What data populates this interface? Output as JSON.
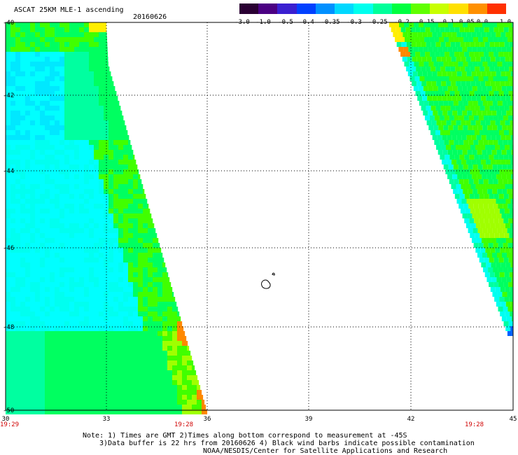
{
  "header": {
    "title": "ASCAT 25KM MLE-1 ascending",
    "date": "20160626"
  },
  "colorbar": {
    "labels": [
      "-3.0",
      "-1.0",
      "-0.5",
      "-0.4",
      "-0.35",
      "-0.3",
      "-0.25",
      "-0.2",
      "-0.15",
      "-0.1",
      "-0.05",
      "0.0",
      "1.0"
    ],
    "colors": [
      "#2a0033",
      "#4b0082",
      "#3a1fd0",
      "#0040ff",
      "#0090ff",
      "#00d8ff",
      "#00ffee",
      "#00ff9a",
      "#00ff40",
      "#60ff00",
      "#c8ff00",
      "#ffe000",
      "#ff9000",
      "#ff3000"
    ]
  },
  "map": {
    "lat_labels": [
      "-40",
      "-42",
      "-44",
      "-46",
      "-48",
      "-50"
    ],
    "lon_labels": [
      "30",
      "33",
      "36",
      "39",
      "42",
      "45"
    ],
    "time_labels": [
      "19:29",
      "19:28",
      "19:28"
    ],
    "palette": {
      "cyan": "#00ffff",
      "aqua": "#00fff0",
      "blue_cyan": "#00e8ff",
      "sea_green": "#00ffa0",
      "green": "#00ff60",
      "lime": "#40ff00",
      "yellow_green": "#a0ff00",
      "yellow": "#ffee00",
      "orange": "#ff8800",
      "blue": "#0060ff"
    }
  },
  "notes": {
    "line1": "Note: 1) Times are GMT 2)Times along bottom correspond to measurement at -45S",
    "line2": "3)Data buffer is 22 hrs from 20160626 4) Black wind barbs indicate possible contamination",
    "line3": "NOAA/NESDIS/Center for Satellite Applications and Research"
  }
}
